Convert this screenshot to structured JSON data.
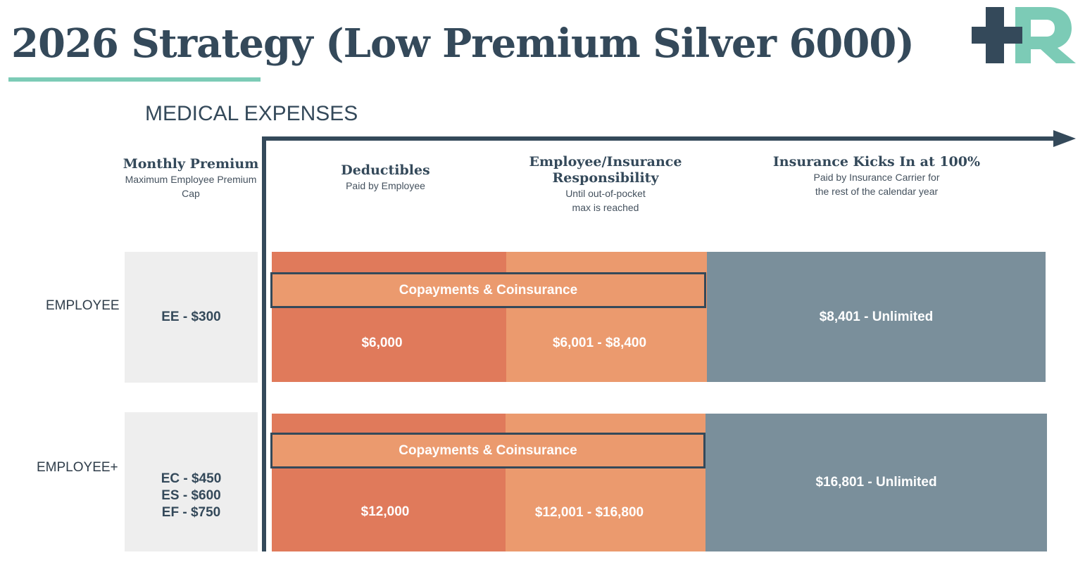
{
  "title": "2026 Strategy (Low Premium Silver 6000)",
  "logo": {
    "name": "plus-r-logo",
    "colors": {
      "plus": "#34495a",
      "r": "#7ccbb6"
    }
  },
  "section_label": "MEDICAL EXPENSES",
  "columns": {
    "premium": {
      "heading": "Monthly Premium",
      "sub": "Maximum Employee Premium Cap"
    },
    "deductibles": {
      "heading": "Deductibles",
      "sub": "Paid by Employee"
    },
    "responsibility": {
      "heading_line1": "Employee/Insurance",
      "heading_line2": "Responsibility",
      "sub_line1": "Until out-of-pocket",
      "sub_line2": "max is reached"
    },
    "insurance": {
      "heading": "Insurance Kicks In at 100%",
      "sub_line1": "Paid by Insurance Carrier for",
      "sub_line2": "the rest of the calendar year"
    }
  },
  "rows": [
    {
      "label": "EMPLOYEE",
      "premiums": [
        "EE - $300"
      ],
      "copay_label": "Copayments & Coinsurance",
      "deductible": "$6,000",
      "responsibility": "$6,001 - $8,400",
      "insurance": "$8,401 - Unlimited"
    },
    {
      "label": "EMPLOYEE+",
      "premiums": [
        "EC - $450",
        "ES - $600",
        "EF - $750"
      ],
      "copay_label": "Copayments & Coinsurance",
      "deductible": "$12,000",
      "responsibility": "$12,001 - $16,800",
      "insurance": "$16,801 - Unlimited"
    }
  ],
  "colors": {
    "deductible": "#e07a5b",
    "responsibility": "#eb9a6e",
    "insurance": "#7a8f9b",
    "premium_bg": "#eeeeee",
    "dark": "#34495a",
    "accent": "#7ccbb6"
  }
}
